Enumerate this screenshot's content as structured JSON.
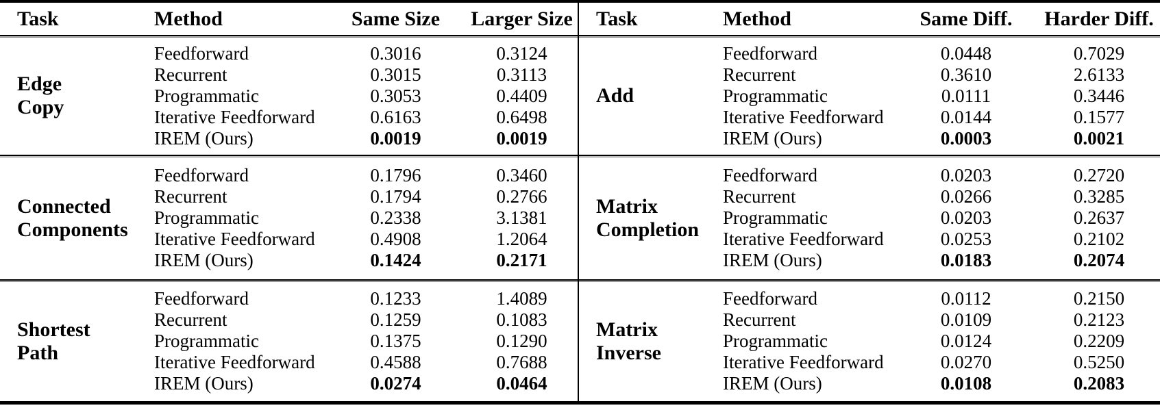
{
  "page": {
    "background": "#ffffff",
    "text_color": "#000000",
    "rule_color": "#000000"
  },
  "tables": [
    {
      "id": "left",
      "headers": [
        "Task",
        "Method",
        "Same Size",
        "Larger Size"
      ],
      "sections": [
        {
          "task_lines": [
            "Edge",
            "Copy"
          ],
          "rows": [
            {
              "method": "Feedforward",
              "values": [
                "0.3016",
                "0.3124"
              ],
              "bold_values": false
            },
            {
              "method": "Recurrent",
              "values": [
                "0.3015",
                "0.3113"
              ],
              "bold_values": false
            },
            {
              "method": "Programmatic",
              "values": [
                "0.3053",
                "0.4409"
              ],
              "bold_values": false
            },
            {
              "method": "Iterative Feedforward",
              "values": [
                "0.6163",
                "0.6498"
              ],
              "bold_values": false
            },
            {
              "method": "IREM (Ours)",
              "values": [
                "0.0019",
                "0.0019"
              ],
              "bold_values": true
            }
          ]
        },
        {
          "task_lines": [
            "Connected",
            "Components"
          ],
          "rows": [
            {
              "method": "Feedforward",
              "values": [
                "0.1796",
                "0.3460"
              ],
              "bold_values": false
            },
            {
              "method": "Recurrent",
              "values": [
                "0.1794",
                "0.2766"
              ],
              "bold_values": false
            },
            {
              "method": "Programmatic",
              "values": [
                "0.2338",
                "3.1381"
              ],
              "bold_values": false
            },
            {
              "method": "Iterative Feedforward",
              "values": [
                "0.4908",
                "1.2064"
              ],
              "bold_values": false
            },
            {
              "method": "IREM (Ours)",
              "values": [
                "0.1424",
                "0.2171"
              ],
              "bold_values": true
            }
          ]
        },
        {
          "task_lines": [
            "Shortest",
            "Path"
          ],
          "rows": [
            {
              "method": "Feedforward",
              "values": [
                "0.1233",
                "1.4089"
              ],
              "bold_values": false
            },
            {
              "method": "Recurrent",
              "values": [
                "0.1259",
                "0.1083"
              ],
              "bold_values": false
            },
            {
              "method": "Programmatic",
              "values": [
                "0.1375",
                "0.1290"
              ],
              "bold_values": false
            },
            {
              "method": "Iterative Feedforward",
              "values": [
                "0.4588",
                "0.7688"
              ],
              "bold_values": false
            },
            {
              "method": "IREM (Ours)",
              "values": [
                "0.0274",
                "0.0464"
              ],
              "bold_values": true
            }
          ]
        }
      ]
    },
    {
      "id": "right",
      "headers": [
        "Task",
        "Method",
        "Same Diff.",
        "Harder Diff."
      ],
      "sections": [
        {
          "task_lines": [
            "Add"
          ],
          "rows": [
            {
              "method": "Feedforward",
              "values": [
                "0.0448",
                "0.7029"
              ],
              "bold_values": false
            },
            {
              "method": "Recurrent",
              "values": [
                "0.3610",
                "2.6133"
              ],
              "bold_values": false
            },
            {
              "method": "Programmatic",
              "values": [
                "0.0111",
                "0.3446"
              ],
              "bold_values": false
            },
            {
              "method": "Iterative Feedforward",
              "values": [
                "0.0144",
                "0.1577"
              ],
              "bold_values": false
            },
            {
              "method": "IREM (Ours)",
              "values": [
                "0.0003",
                "0.0021"
              ],
              "bold_values": true
            }
          ]
        },
        {
          "task_lines": [
            "Matrix",
            "Completion"
          ],
          "rows": [
            {
              "method": "Feedforward",
              "values": [
                "0.0203",
                "0.2720"
              ],
              "bold_values": false
            },
            {
              "method": "Recurrent",
              "values": [
                "0.0266",
                "0.3285"
              ],
              "bold_values": false
            },
            {
              "method": "Programmatic",
              "values": [
                "0.0203",
                "0.2637"
              ],
              "bold_values": false
            },
            {
              "method": "Iterative Feedforward",
              "values": [
                "0.0253",
                "0.2102"
              ],
              "bold_values": false
            },
            {
              "method": "IREM (Ours)",
              "values": [
                "0.0183",
                "0.2074"
              ],
              "bold_values": true
            }
          ]
        },
        {
          "task_lines": [
            "Matrix",
            "Inverse"
          ],
          "rows": [
            {
              "method": "Feedforward",
              "values": [
                "0.0112",
                "0.2150"
              ],
              "bold_values": false
            },
            {
              "method": "Recurrent",
              "values": [
                "0.0109",
                "0.2123"
              ],
              "bold_values": false
            },
            {
              "method": "Programmatic",
              "values": [
                "0.0124",
                "0.2209"
              ],
              "bold_values": false
            },
            {
              "method": "Iterative Feedforward",
              "values": [
                "0.0270",
                "0.5250"
              ],
              "bold_values": false
            },
            {
              "method": "IREM (Ours)",
              "values": [
                "0.0108",
                "0.2083"
              ],
              "bold_values": true
            }
          ]
        }
      ]
    }
  ]
}
